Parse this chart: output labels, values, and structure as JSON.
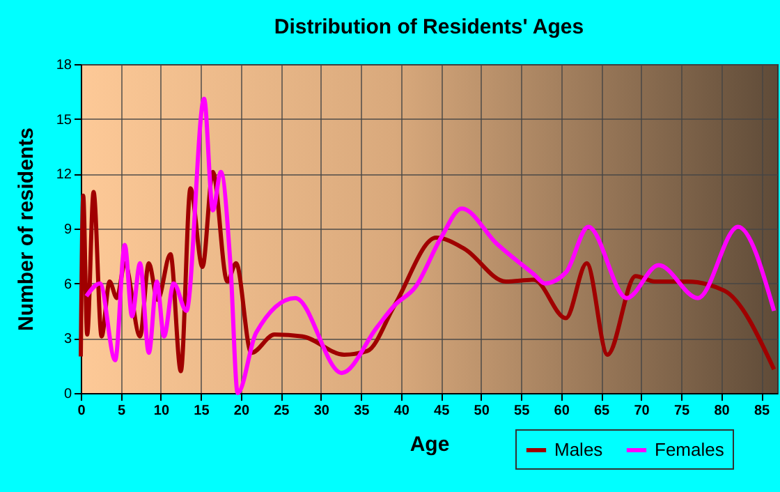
{
  "chart_data": {
    "type": "line",
    "title": "Distribution of Residents' Ages",
    "xlabel": "Age",
    "ylabel": "Number of residents",
    "xlim": [
      0,
      87
    ],
    "xticks": [
      0,
      5,
      10,
      15,
      20,
      25,
      30,
      35,
      40,
      45,
      50,
      55,
      60,
      65,
      70,
      75,
      80,
      85
    ],
    "ylim": [
      0,
      18
    ],
    "yticks": [
      0,
      3,
      6,
      9,
      12,
      15,
      18
    ],
    "grid": true,
    "legend": "bottom right",
    "series": [
      {
        "name": "Males",
        "color": "#a00000",
        "x": [
          0,
          0.3,
          0.8,
          1.6,
          2.6,
          3.6,
          4.5,
          5.5,
          7.4,
          8.5,
          9.6,
          11.2,
          12.5,
          13.7,
          15.2,
          16.5,
          18.3,
          19.4,
          21.3,
          24.2,
          27.7,
          32.9,
          35.8,
          39.2,
          44.4,
          47.9,
          53.1,
          56.6,
          60.6,
          63.2,
          65.8,
          69.3,
          71.7,
          75.7,
          80.4,
          86.6
        ],
        "values": [
          2,
          10.8,
          3.2,
          11,
          3.1,
          6.1,
          5.2,
          7.1,
          3.1,
          7.1,
          5.1,
          7.6,
          1.2,
          11.2,
          6.9,
          12.1,
          6.1,
          7.1,
          2.2,
          3.2,
          3.1,
          2.1,
          2.3,
          4.8,
          8.5,
          7.9,
          6.1,
          6.2,
          4.1,
          7.1,
          2.1,
          6.4,
          6.1,
          6.1,
          5.6,
          1.3
        ]
      },
      {
        "name": "Females",
        "color": "#ff00ff",
        "x": [
          0.7,
          2.4,
          4.3,
          5.5,
          6.4,
          7.4,
          8.5,
          9.5,
          10.4,
          11.6,
          13.2,
          15.4,
          16.5,
          17.5,
          18.7,
          19.6,
          21.9,
          26.8,
          32.6,
          37,
          39.2,
          41.8,
          45,
          47.6,
          51.9,
          56.6,
          58,
          60.6,
          63.4,
          68.2,
          72.2,
          77.1,
          82.1,
          86.6
        ],
        "values": [
          5.3,
          6,
          1.8,
          8.1,
          4.2,
          7.1,
          2.2,
          6.1,
          3.1,
          6,
          4.5,
          16.1,
          10,
          12.1,
          7,
          0,
          3.3,
          5.2,
          1.1,
          3.6,
          4.8,
          5.8,
          8.5,
          10.1,
          8.2,
          6.5,
          6,
          6.6,
          9.1,
          5.2,
          7,
          5.2,
          9.1,
          4.5
        ]
      }
    ]
  }
}
